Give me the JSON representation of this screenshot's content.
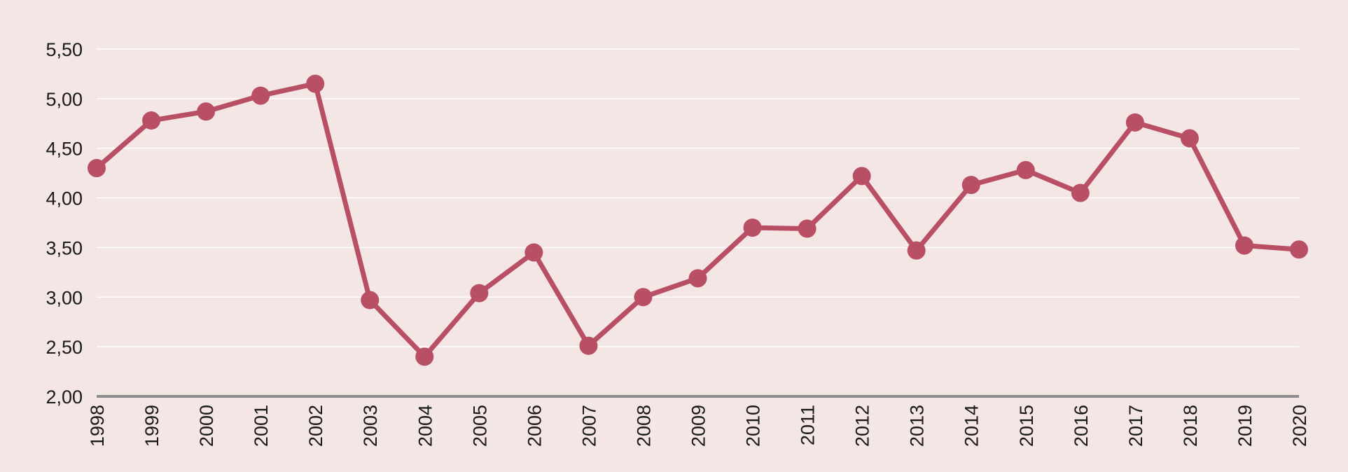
{
  "chart_data": {
    "type": "line",
    "title": "",
    "xlabel": "",
    "ylabel": "",
    "categories": [
      "1998",
      "1999",
      "2000",
      "2001",
      "2002",
      "2003",
      "2004",
      "2005",
      "2006",
      "2007",
      "2008",
      "2009",
      "2010",
      "2011",
      "2012",
      "2013",
      "2014",
      "2015",
      "2016",
      "2017",
      "2018",
      "2019",
      "2020"
    ],
    "series": [
      {
        "values": [
          4.3,
          4.78,
          4.87,
          5.03,
          5.15,
          2.97,
          2.4,
          3.04,
          3.45,
          2.51,
          3.0,
          3.19,
          3.7,
          3.69,
          4.22,
          3.47,
          4.13,
          4.28,
          4.05,
          4.76,
          4.6,
          3.52,
          3.48
        ],
        "color": "#b84f64"
      }
    ],
    "ylim": [
      2.0,
      5.5
    ],
    "yticks": [
      "2,00",
      "2,50",
      "3,00",
      "3,50",
      "4,00",
      "4,50",
      "5,00",
      "5,50"
    ],
    "ytick_values": [
      2.0,
      2.5,
      3.0,
      3.5,
      4.0,
      4.5,
      5.0,
      5.5
    ],
    "grid": true,
    "colors": {
      "background": "#f3e6e5",
      "grid": "#ffffff",
      "axis": "#8c8c8c",
      "series": "#b84f64",
      "text": "#1a1a1a"
    }
  }
}
